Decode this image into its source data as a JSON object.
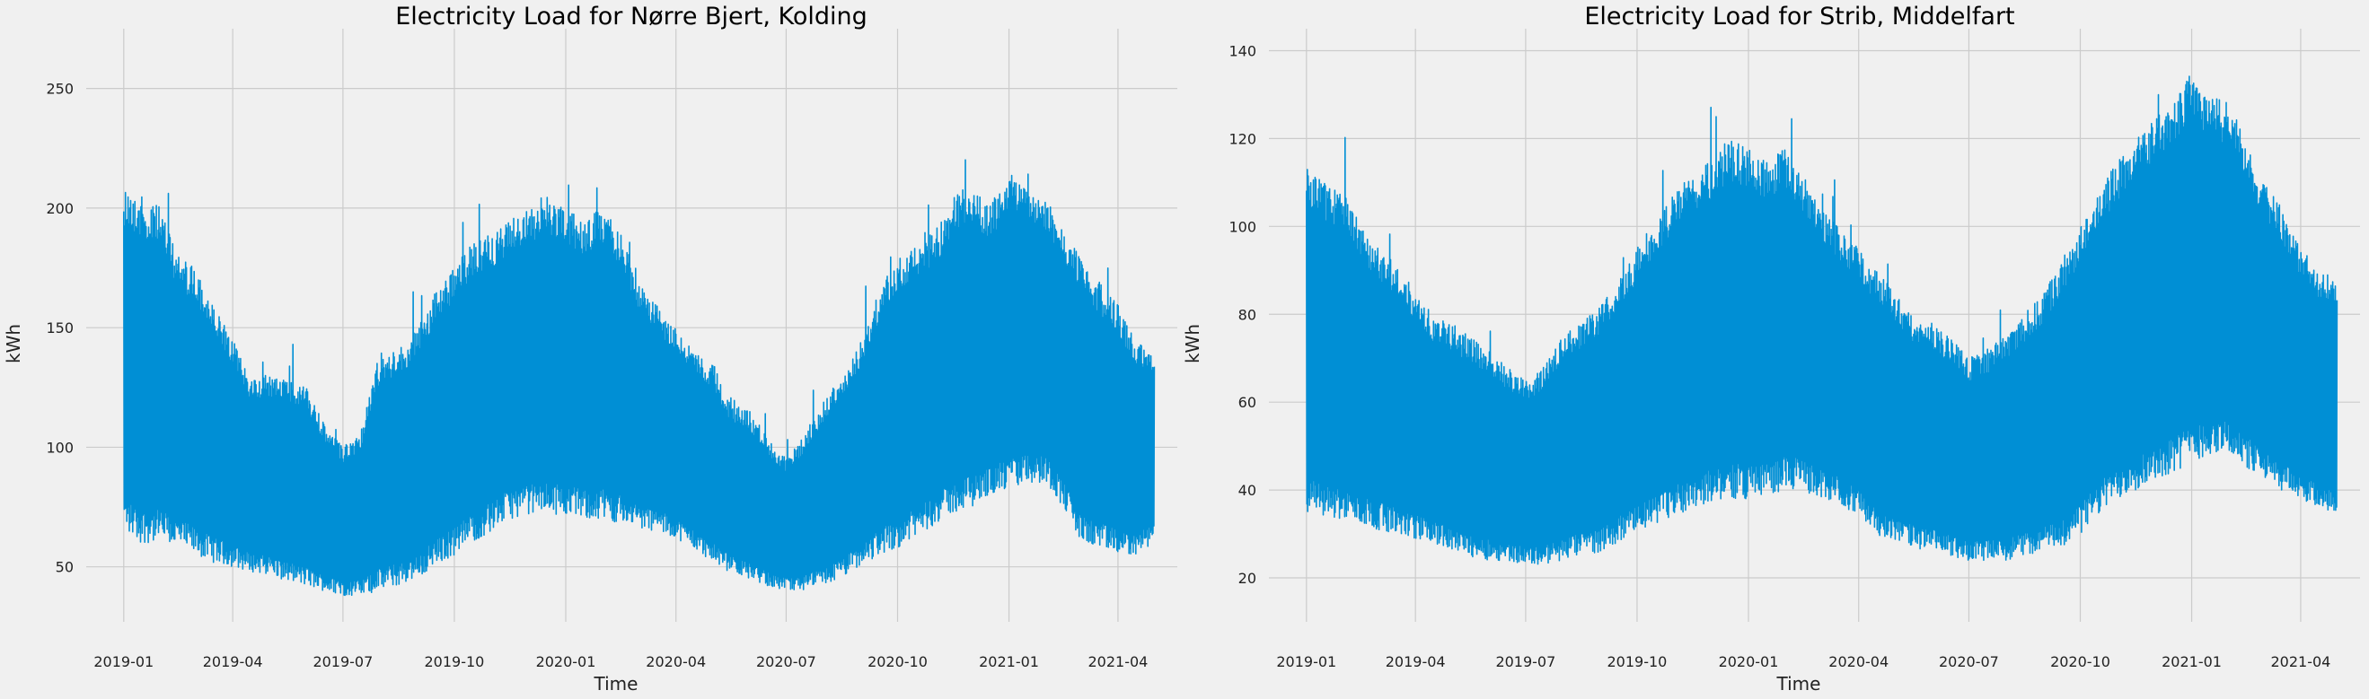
{
  "chart_data": [
    {
      "type": "line",
      "title": "Electricity Load for Nørre Bjert, Kolding",
      "xlabel": "Time",
      "ylabel": "kWh",
      "xlim": [
        "2018-12-01",
        "2021-05-20"
      ],
      "ylim": [
        27,
        275
      ],
      "x_ticks": [
        "2019-01",
        "2019-04",
        "2019-07",
        "2019-10",
        "2020-01",
        "2020-04",
        "2020-07",
        "2020-10",
        "2021-01",
        "2021-04"
      ],
      "y_ticks": [
        50,
        100,
        150,
        200,
        250
      ],
      "grid": true,
      "series": [
        {
          "color": "#008fd5",
          "x": [
            "2019-01-01",
            "2019-01-15",
            "2019-02-01",
            "2019-02-15",
            "2019-03-01",
            "2019-03-15",
            "2019-04-01",
            "2019-04-15",
            "2019-05-01",
            "2019-05-15",
            "2019-06-01",
            "2019-06-15",
            "2019-07-01",
            "2019-07-15",
            "2019-08-01",
            "2019-08-15",
            "2019-09-01",
            "2019-09-15",
            "2019-10-01",
            "2019-10-15",
            "2019-11-01",
            "2019-11-15",
            "2019-12-01",
            "2019-12-15",
            "2020-01-01",
            "2020-01-15",
            "2020-02-01",
            "2020-02-15",
            "2020-03-01",
            "2020-03-15",
            "2020-04-01",
            "2020-04-15",
            "2020-05-01",
            "2020-05-15",
            "2020-06-01",
            "2020-06-15",
            "2020-07-01",
            "2020-07-15",
            "2020-08-01",
            "2020-08-15",
            "2020-09-01",
            "2020-09-15",
            "2020-10-01",
            "2020-10-15",
            "2020-11-01",
            "2020-11-15",
            "2020-12-01",
            "2020-12-15",
            "2021-01-01",
            "2021-01-15",
            "2021-02-01",
            "2021-02-15",
            "2021-03-01",
            "2021-03-15",
            "2021-04-01",
            "2021-04-15",
            "2021-05-01"
          ],
          "low": [
            65,
            60,
            60,
            58,
            55,
            52,
            50,
            48,
            47,
            44,
            42,
            40,
            38,
            38,
            40,
            42,
            45,
            50,
            55,
            60,
            65,
            70,
            72,
            72,
            72,
            70,
            70,
            68,
            66,
            65,
            62,
            58,
            52,
            48,
            45,
            42,
            40,
            40,
            42,
            45,
            50,
            55,
            58,
            62,
            68,
            72,
            75,
            80,
            82,
            85,
            85,
            75,
            60,
            58,
            55,
            55,
            60
          ],
          "high": [
            210,
            205,
            200,
            180,
            175,
            160,
            145,
            130,
            130,
            130,
            125,
            110,
            100,
            105,
            140,
            140,
            150,
            165,
            175,
            185,
            190,
            195,
            200,
            205,
            200,
            195,
            200,
            190,
            170,
            160,
            150,
            140,
            135,
            120,
            115,
            105,
            95,
            105,
            120,
            130,
            145,
            165,
            180,
            185,
            190,
            205,
            210,
            200,
            215,
            210,
            205,
            190,
            180,
            170,
            160,
            145,
            140
          ]
        }
      ]
    },
    {
      "type": "line",
      "title": "Electricity Load for Strib, Middelfart",
      "xlabel": "Time",
      "ylabel": "kWh",
      "xlim": [
        "2018-12-01",
        "2021-05-20"
      ],
      "ylim": [
        10,
        145
      ],
      "x_ticks": [
        "2019-01",
        "2019-04",
        "2019-07",
        "2019-10",
        "2020-01",
        "2020-04",
        "2020-07",
        "2020-10",
        "2021-01",
        "2021-04"
      ],
      "y_ticks": [
        20,
        40,
        60,
        80,
        100,
        120,
        140
      ],
      "grid": true,
      "series": [
        {
          "color": "#008fd5",
          "x": [
            "2019-01-01",
            "2019-01-15",
            "2019-02-01",
            "2019-02-15",
            "2019-03-01",
            "2019-03-15",
            "2019-04-01",
            "2019-04-15",
            "2019-05-01",
            "2019-05-15",
            "2019-06-01",
            "2019-06-15",
            "2019-07-01",
            "2019-07-15",
            "2019-08-01",
            "2019-08-15",
            "2019-09-01",
            "2019-09-15",
            "2019-10-01",
            "2019-10-15",
            "2019-11-01",
            "2019-11-15",
            "2019-12-01",
            "2019-12-15",
            "2020-01-01",
            "2020-01-15",
            "2020-02-01",
            "2020-02-15",
            "2020-03-01",
            "2020-03-15",
            "2020-04-01",
            "2020-04-15",
            "2020-05-01",
            "2020-05-15",
            "2020-06-01",
            "2020-06-15",
            "2020-07-01",
            "2020-07-15",
            "2020-08-01",
            "2020-08-15",
            "2020-09-01",
            "2020-09-15",
            "2020-10-01",
            "2020-10-15",
            "2020-11-01",
            "2020-11-15",
            "2020-12-01",
            "2020-12-15",
            "2021-01-01",
            "2021-01-15",
            "2021-02-01",
            "2021-02-15",
            "2021-03-01",
            "2021-03-15",
            "2021-04-01",
            "2021-04-15",
            "2021-05-01"
          ],
          "low": [
            35,
            34,
            33,
            32,
            31,
            30,
            29,
            28,
            26,
            25,
            24,
            24,
            23,
            23,
            24,
            25,
            26,
            28,
            30,
            32,
            34,
            36,
            37,
            38,
            38,
            39,
            40,
            40,
            38,
            37,
            34,
            30,
            28,
            27,
            26,
            25,
            24,
            24,
            24,
            25,
            26,
            27,
            30,
            34,
            38,
            40,
            42,
            44,
            46,
            48,
            48,
            45,
            42,
            40,
            38,
            36,
            35
          ],
          "high": [
            115,
            110,
            108,
            100,
            95,
            92,
            85,
            80,
            78,
            75,
            72,
            68,
            65,
            68,
            75,
            78,
            82,
            88,
            95,
            100,
            108,
            112,
            115,
            120,
            118,
            115,
            118,
            112,
            105,
            100,
            95,
            90,
            85,
            80,
            78,
            75,
            70,
            72,
            75,
            80,
            85,
            92,
            100,
            108,
            115,
            120,
            125,
            128,
            135,
            130,
            128,
            120,
            110,
            105,
            95,
            90,
            88
          ]
        }
      ]
    }
  ]
}
